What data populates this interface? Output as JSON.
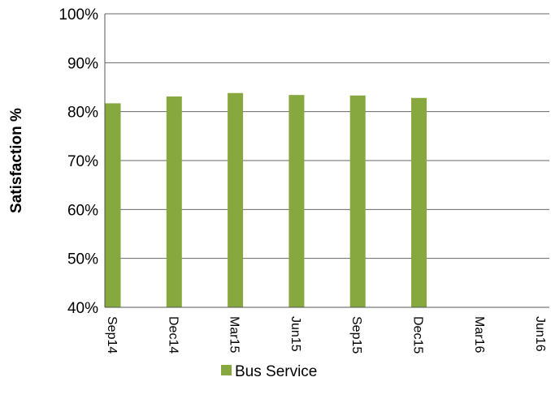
{
  "chart_data": {
    "type": "bar",
    "title": "",
    "xlabel": "",
    "ylabel": "Satisfaction %",
    "ylim": [
      40,
      100
    ],
    "y_ticks": [
      "40%",
      "50%",
      "60%",
      "70%",
      "80%",
      "90%",
      "100%"
    ],
    "categories": [
      "Sep14",
      "Dec14",
      "Mar15",
      "Jun15",
      "Sep15",
      "Dec15",
      "Mar16",
      "Jun16"
    ],
    "series": [
      {
        "name": "Bus Service",
        "color": "#86a83e",
        "values": [
          81.7,
          83.1,
          83.8,
          83.4,
          83.3,
          82.8,
          null,
          null
        ]
      }
    ],
    "grid": true,
    "legend_position": "bottom"
  }
}
